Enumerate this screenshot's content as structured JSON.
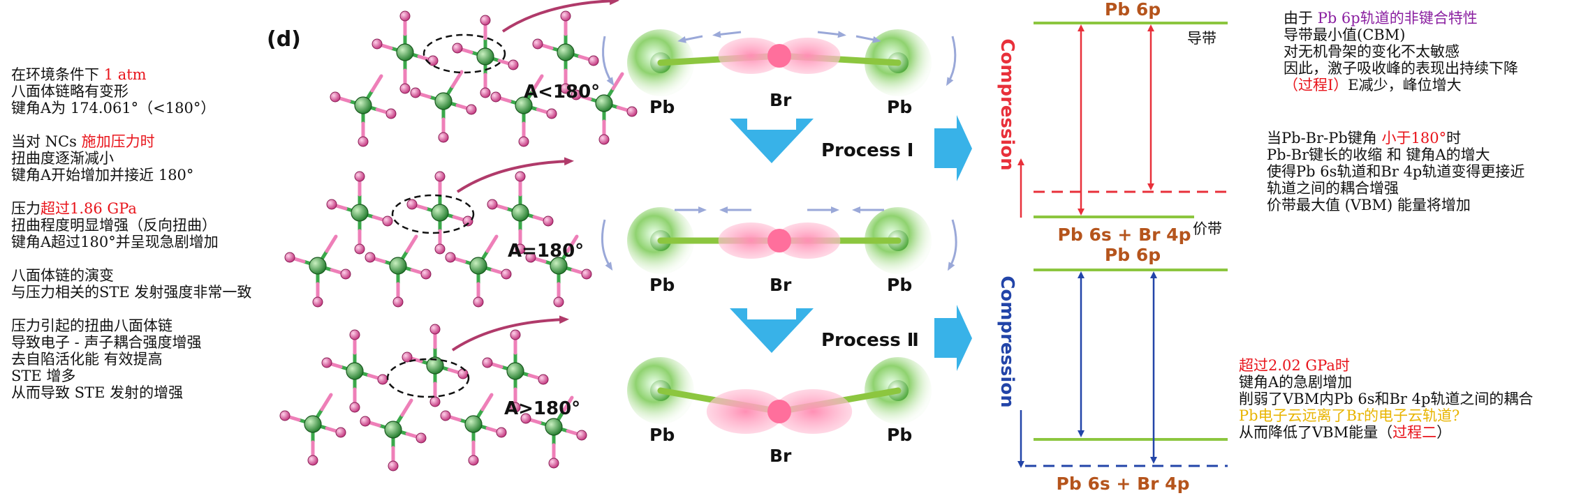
{
  "panel_label": "(d)",
  "left_notes": [
    [
      [
        {
          "t": "在环境条件下 "
        },
        {
          "t": "1 atm",
          "c": "red"
        }
      ],
      [
        {
          "t": "八面体链略有变形"
        }
      ],
      [
        {
          "t": "键角A为 174.061°（<180°）"
        }
      ]
    ],
    [
      [
        {
          "t": "当对 NCs "
        },
        {
          "t": "施加压力时",
          "c": "red"
        }
      ],
      [
        {
          "t": "扭曲度逐渐减小"
        }
      ],
      [
        {
          "t": "键角A开始增加并接近 180°"
        }
      ]
    ],
    [
      [
        {
          "t": "压力"
        },
        {
          "t": "超过1.86 GPa",
          "c": "red"
        }
      ],
      [
        {
          "t": "扭曲程度明显增强（反向扭曲）"
        }
      ],
      [
        {
          "t": "键角A超过180°并呈现急剧增加"
        }
      ]
    ],
    [
      [
        {
          "t": "八面体链的演变"
        }
      ],
      [
        {
          "t": "与压力相关的STE 发射强度非常一致"
        }
      ]
    ],
    [
      [
        {
          "t": "压力引起的扭曲八面体链"
        }
      ],
      [
        {
          "t": "导致电子 - 声子耦合强度增强"
        }
      ],
      [
        {
          "t": "去自陷活化能 有效提高"
        }
      ],
      [
        {
          "t": "STE 增多"
        }
      ],
      [
        {
          "t": "从而导致 STE 发射的增强"
        }
      ]
    ]
  ],
  "angles": [
    "A<180°",
    "A=180°",
    "A>180°"
  ],
  "atoms": {
    "pb": "Pb",
    "br": "Br"
  },
  "processes": [
    "Process Ⅰ",
    "Process Ⅱ"
  ],
  "compression": "Compression",
  "levels": {
    "cb": "Pb 6p",
    "vb": "Pb 6s + Br 4p",
    "cb_cn": "导带",
    "vb_cn": "价带"
  },
  "right_top_notes": [
    [
      {
        "t": "由于 "
      },
      {
        "t": "Pb 6p轨道的非键合特性",
        "c": "purple"
      }
    ],
    [
      {
        "t": "导带最小值(CBM)"
      }
    ],
    [
      {
        "t": "对无机骨架的变化不太敏感"
      }
    ],
    [
      {
        "t": "因此，激子吸收峰的表现出持续下降"
      }
    ],
    [
      {
        "t": "（过程Ⅰ）",
        "c": "red"
      },
      {
        "t": "E减少，峰位增大"
      }
    ]
  ],
  "right_mid_notes": [
    [
      {
        "t": "当Pb-Br-Pb键角 "
      },
      {
        "t": "小于180°",
        "c": "red"
      },
      {
        "t": "时"
      }
    ],
    [
      {
        "t": "Pb-Br键长的收缩 和 键角A的增大"
      }
    ],
    [
      {
        "t": "使得Pb 6s轨道和Br 4p轨道变得更接近"
      }
    ],
    [
      {
        "t": "轨道之间的耦合增强"
      }
    ],
    [
      {
        "t": "价带最大值 (VBM) 能量将增加"
      }
    ]
  ],
  "right_bot_notes": [
    [
      {
        "t": "超过2.02 GPa时",
        "c": "red"
      }
    ],
    [
      {
        "t": "键角A的急剧增加"
      }
    ],
    [
      {
        "t": "削弱了VBM内Pb 6s和Br 4p轨道之间的耦合"
      }
    ],
    [
      {
        "t": "Pb电子云远离了Br的电子云轨道?",
        "c": "yellow"
      }
    ],
    [
      {
        "t": "从而降低了VBM能量（"
      },
      {
        "t": "过程二",
        "c": "red"
      },
      {
        "t": "）"
      }
    ]
  ],
  "colors": {
    "green": "#2e8b2e",
    "pink": "#e0559a",
    "blue_arrow": "#38b2e8",
    "red": "#e8303a",
    "blue": "#2244a8",
    "level": "#8cc63f",
    "label_brown": "#b5541c"
  }
}
